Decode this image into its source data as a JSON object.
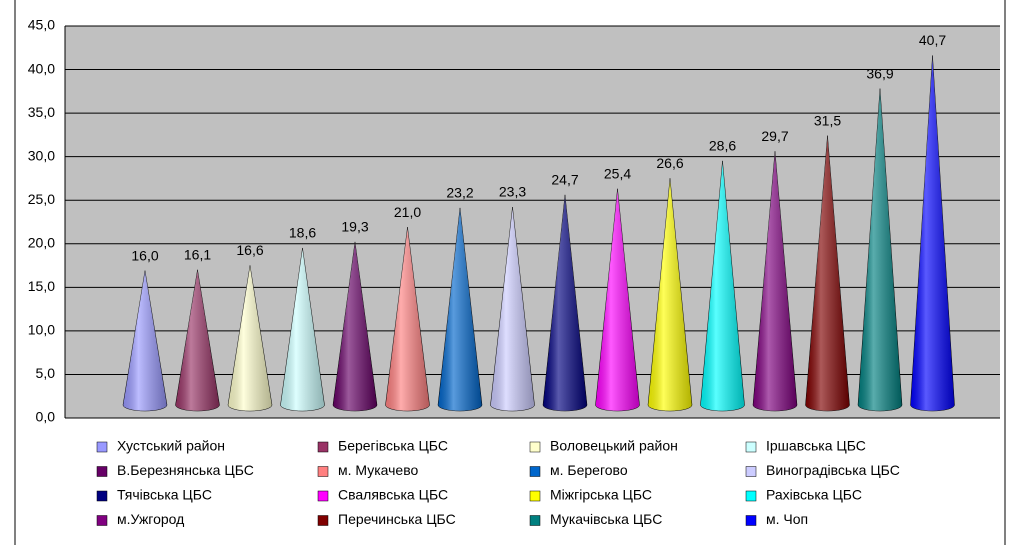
{
  "chart_data": {
    "type": "cone",
    "ylim": [
      0,
      45
    ],
    "yticks": [
      {
        "value": 0,
        "label": "0,0"
      },
      {
        "value": 5,
        "label": "5,0"
      },
      {
        "value": 10,
        "label": "10,0"
      },
      {
        "value": 15,
        "label": "15,0"
      },
      {
        "value": 20,
        "label": "20,0"
      },
      {
        "value": 25,
        "label": "25,0"
      },
      {
        "value": 30,
        "label": "30,0"
      },
      {
        "value": 35,
        "label": "35,0"
      },
      {
        "value": 40,
        "label": "40,0"
      },
      {
        "value": 45,
        "label": "45,0"
      }
    ],
    "grid": true,
    "series": [
      {
        "name": "Хустський район",
        "color": "#9999ff",
        "values": [
          16.0
        ],
        "value_labels": [
          "16,0"
        ]
      },
      {
        "name": "Берегівська ЦБС",
        "color": "#993366",
        "values": [
          16.1
        ],
        "value_labels": [
          "16,1"
        ]
      },
      {
        "name": "Воловецький район",
        "color": "#ffffcc",
        "values": [
          16.6
        ],
        "value_labels": [
          "16,6"
        ]
      },
      {
        "name": "Іршавська ЦБС",
        "color": "#ccffff",
        "values": [
          18.6
        ],
        "value_labels": [
          "18,6"
        ]
      },
      {
        "name": "В.Березнянська ЦБС",
        "color": "#660066",
        "values": [
          19.3
        ],
        "value_labels": [
          "19,3"
        ]
      },
      {
        "name": "м. Мукачево",
        "color": "#ff8080",
        "values": [
          21.0
        ],
        "value_labels": [
          "21,0"
        ]
      },
      {
        "name": "м. Берегово",
        "color": "#0066cc",
        "values": [
          23.2
        ],
        "value_labels": [
          "23,2"
        ]
      },
      {
        "name": "Виноградівська ЦБС",
        "color": "#ccccff",
        "values": [
          23.3
        ],
        "value_labels": [
          "23,3"
        ]
      },
      {
        "name": "Тячівська ЦБС",
        "color": "#000080",
        "values": [
          24.7
        ],
        "value_labels": [
          "24,7"
        ]
      },
      {
        "name": "Свалявська ЦБС",
        "color": "#ff00ff",
        "values": [
          25.4
        ],
        "value_labels": [
          "25,4"
        ]
      },
      {
        "name": "Міжгірська ЦБС",
        "color": "#ffff00",
        "values": [
          26.6
        ],
        "value_labels": [
          "26,6"
        ]
      },
      {
        "name": "Рахівська ЦБС",
        "color": "#00ffff",
        "values": [
          28.6
        ],
        "value_labels": [
          "28,6"
        ]
      },
      {
        "name": "м.Ужгород",
        "color": "#800080",
        "values": [
          29.7
        ],
        "value_labels": [
          "29,7"
        ]
      },
      {
        "name": "Перечинська ЦБС",
        "color": "#800000",
        "values": [
          31.5
        ],
        "value_labels": [
          "31,5"
        ]
      },
      {
        "name": "Мукачівська ЦБС",
        "color": "#008080",
        "values": [
          36.9
        ],
        "value_labels": [
          "36,9"
        ]
      },
      {
        "name": "м. Чоп",
        "color": "#0000ff",
        "values": [
          40.7
        ],
        "value_labels": [
          "40,7"
        ]
      }
    ]
  }
}
